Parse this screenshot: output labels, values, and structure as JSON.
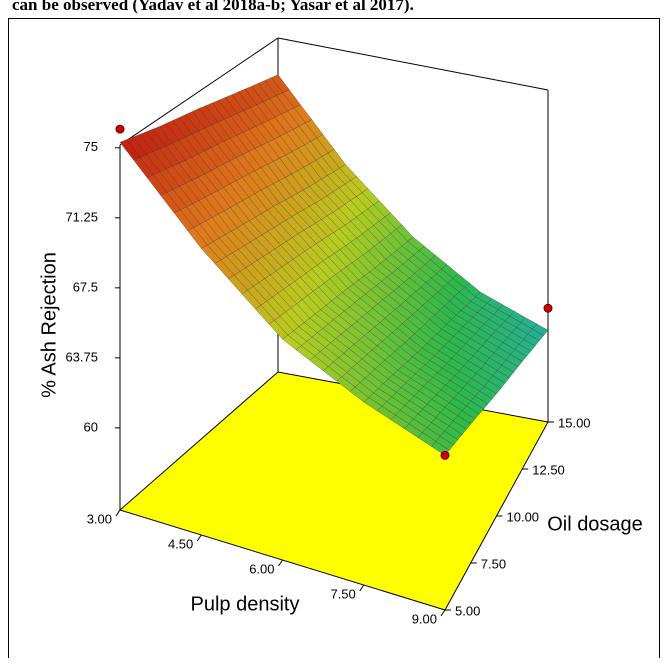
{
  "caption_fragment": "can be observed (Yadav et al 2018a-b; Yasar et al 2017).",
  "chart_data": {
    "type": "surface3d",
    "xlabel": "Pulp density",
    "ylabel": "Oil dosage",
    "zlabel": "% Ash Rejection",
    "x": [
      3,
      4.5,
      6,
      7.5,
      9
    ],
    "y": [
      5,
      7.5,
      10,
      12.5,
      15
    ],
    "z": [
      [
        75.3,
        71,
        67.5,
        65.5,
        64
      ],
      [
        74.7,
        70.4,
        66.9,
        64.8,
        63.3
      ],
      [
        74.2,
        69.8,
        66.3,
        64,
        62.5
      ],
      [
        73.6,
        69.1,
        65.6,
        63.3,
        61.8
      ],
      [
        73,
        68.5,
        65,
        62.5,
        61
      ]
    ],
    "xlim": [
      3,
      9
    ],
    "ylim": [
      5,
      15
    ],
    "zlim": [
      55.6,
      75.15
    ],
    "xticks": [
      {
        "value": 3,
        "label": "3.00"
      },
      {
        "value": 4.5,
        "label": "4.50"
      },
      {
        "value": 6,
        "label": "6.00"
      },
      {
        "value": 7.5,
        "label": "7.50"
      },
      {
        "value": 9,
        "label": "9.00"
      }
    ],
    "yticks": [
      {
        "value": 5,
        "label": "5.00"
      },
      {
        "value": 7.5,
        "label": "7.50"
      },
      {
        "value": 10,
        "label": "10.00"
      },
      {
        "value": 12.5,
        "label": "12.50"
      },
      {
        "value": 15,
        "label": "15.00"
      }
    ],
    "zticks": [
      60,
      63.75,
      67.5,
      71.25,
      75
    ],
    "points": {
      "x": [
        3,
        9,
        9
      ],
      "y": [
        5,
        5,
        15
      ],
      "z": [
        76,
        64,
        62.3
      ],
      "color": "#cc0000"
    },
    "floor_color": "#ffff00",
    "colormap": [
      "#1a3d8f",
      "#1fa8c8",
      "#2fb84a",
      "#b8cc20",
      "#e07a1c",
      "#c01e10"
    ]
  }
}
